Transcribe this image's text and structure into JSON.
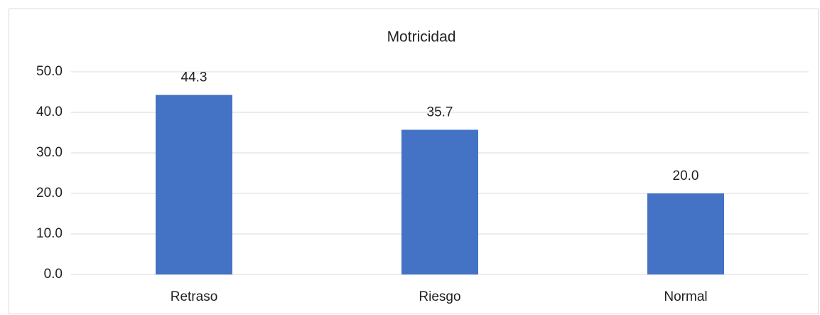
{
  "chart_data": {
    "type": "bar",
    "title": "Motricidad",
    "categories": [
      "Retraso",
      "Riesgo",
      "Normal"
    ],
    "values": [
      44.3,
      35.7,
      20.0
    ],
    "value_labels": [
      "44.3",
      "35.7",
      "20.0"
    ],
    "color": "#4472c4",
    "ylim": [
      0,
      50
    ],
    "yticks": [
      {
        "value": 0,
        "label": "0.0"
      },
      {
        "value": 10,
        "label": "10.0"
      },
      {
        "value": 20,
        "label": "20.0"
      },
      {
        "value": 30,
        "label": "30.0"
      },
      {
        "value": 40,
        "label": "40.0"
      },
      {
        "value": 50,
        "label": "50.0"
      }
    ],
    "grid": true
  }
}
